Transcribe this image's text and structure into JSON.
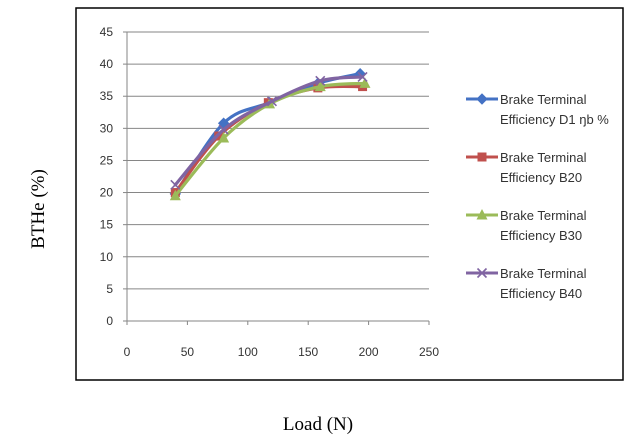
{
  "chart_data": {
    "type": "line",
    "title": "",
    "xlabel": "Load (N)",
    "ylabel": "BTHe (%)",
    "xlim": [
      0,
      250
    ],
    "ylim": [
      0,
      45
    ],
    "x_ticks": [
      0,
      50,
      100,
      150,
      200,
      250
    ],
    "y_ticks": [
      0,
      5,
      10,
      15,
      20,
      25,
      30,
      35,
      40,
      45
    ],
    "grid": "horizontal",
    "legend_position": "right",
    "series": [
      {
        "name": "Brake Terminal Efficiency D1 ŋb %",
        "marker": "diamond",
        "color": "#4472C4",
        "x": [
          40,
          80,
          118,
          158,
          193
        ],
        "y": [
          19.8,
          30.8,
          34.0,
          37.0,
          38.5
        ]
      },
      {
        "name": "Brake Terminal Efficiency B20",
        "marker": "square",
        "color": "#C0504D",
        "x": [
          40,
          76,
          117,
          158,
          195
        ],
        "y": [
          20.0,
          28.8,
          34.0,
          36.3,
          36.5
        ]
      },
      {
        "name": "Brake Terminal Efficiency B30",
        "marker": "triangle",
        "color": "#9BBB59",
        "x": [
          40,
          80,
          118,
          160,
          197
        ],
        "y": [
          19.5,
          28.5,
          33.8,
          36.5,
          37.0
        ]
      },
      {
        "name": "Brake Terminal Efficiency B40",
        "marker": "x",
        "color": "#8064A2",
        "x": [
          40,
          80,
          120,
          160,
          195
        ],
        "y": [
          21.2,
          29.8,
          34.2,
          37.4,
          38.0
        ]
      }
    ],
    "legend": [
      {
        "line1": "Brake Terminal",
        "line2": "Efficiency D1 ŋb %"
      },
      {
        "line1": "Brake Terminal",
        "line2": "Efficiency B20"
      },
      {
        "line1": "Brake Terminal",
        "line2": "Efficiency B30"
      },
      {
        "line1": "Brake Terminal",
        "line2": "Efficiency B40"
      }
    ]
  }
}
